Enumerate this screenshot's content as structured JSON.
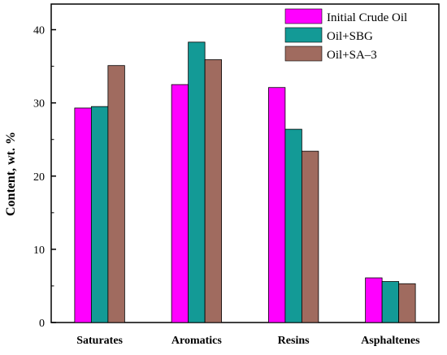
{
  "chart_data": {
    "type": "bar",
    "categories": [
      "Saturates",
      "Aromatics",
      "Resins",
      "Asphaltenes"
    ],
    "series": [
      {
        "name": "Initial Crude Oil",
        "color": "#ff00ff",
        "values": [
          29.3,
          32.5,
          32.1,
          6.1
        ]
      },
      {
        "name": "Oil+SBG",
        "color": "#139a96",
        "values": [
          29.5,
          38.3,
          26.4,
          5.6
        ]
      },
      {
        "name": "Oil+SA–3",
        "color": "#a06b5f",
        "values": [
          35.1,
          35.9,
          23.4,
          5.3
        ]
      }
    ],
    "xlabel": "",
    "ylabel": "Content, wt. %",
    "ylim": [
      0,
      43.5
    ],
    "yticks": [
      0,
      10,
      20,
      30,
      40
    ],
    "grid": false,
    "legend_position": "top-right"
  }
}
